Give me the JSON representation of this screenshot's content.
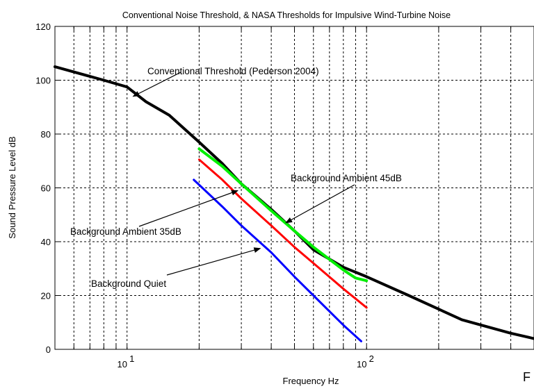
{
  "chart_data": {
    "type": "line",
    "title": "Conventional Noise Threshold, & NASA Thresholds for Impulsive Wind-Turbine Noise",
    "xlabel": "Frequency Hz",
    "ylabel": "Sound Pressure Level dB",
    "x_scale": "log",
    "xlim": [
      5,
      500
    ],
    "ylim": [
      0,
      120
    ],
    "y_ticks": [
      0,
      20,
      40,
      60,
      80,
      100,
      120
    ],
    "x_tick_labels": [
      {
        "value": 10,
        "base": "10",
        "exp": "1"
      },
      {
        "value": 100,
        "base": "10",
        "exp": "2"
      }
    ],
    "grid": true,
    "series": [
      {
        "color": "#000000",
        "x": [
          5,
          8,
          10,
          12,
          15,
          20,
          25,
          30,
          40,
          50,
          60,
          80,
          100,
          150,
          250,
          400,
          500
        ],
        "y": [
          105,
          100,
          97.5,
          92,
          87,
          77,
          69,
          61.5,
          52,
          44,
          37,
          30.5,
          27,
          20,
          11,
          6,
          4
        ]
      },
      {
        "color": "#00ee00",
        "x": [
          20,
          25,
          30,
          40,
          50,
          60,
          80,
          90,
          100
        ],
        "y": [
          74.5,
          68,
          61.5,
          51.5,
          44,
          38,
          29.5,
          26.5,
          25.5
        ]
      },
      {
        "color": "#ff0000",
        "x": [
          20,
          25,
          30,
          40,
          50,
          60,
          80,
          100
        ],
        "y": [
          70.5,
          63,
          56,
          46,
          38,
          32,
          22.5,
          15.5
        ]
      },
      {
        "color": "#0000ff",
        "x": [
          19,
          25,
          30,
          40,
          50,
          60,
          80,
          95
        ],
        "y": [
          63,
          53,
          46,
          36,
          27,
          20,
          9,
          3
        ]
      }
    ],
    "annotations": [
      {
        "text": "Conventional Threshold (Pederson 2004)",
        "arrow_to": [
          10.6,
          94
        ]
      },
      {
        "text": "Background Ambient 45dB",
        "arrow_to": [
          46,
          47
        ]
      },
      {
        "text": "Background Ambient 35dB",
        "arrow_to": [
          29,
          59
        ]
      },
      {
        "text": "Background Quiet",
        "arrow_to": [
          36,
          37.5
        ]
      }
    ]
  },
  "stray_text": "F"
}
